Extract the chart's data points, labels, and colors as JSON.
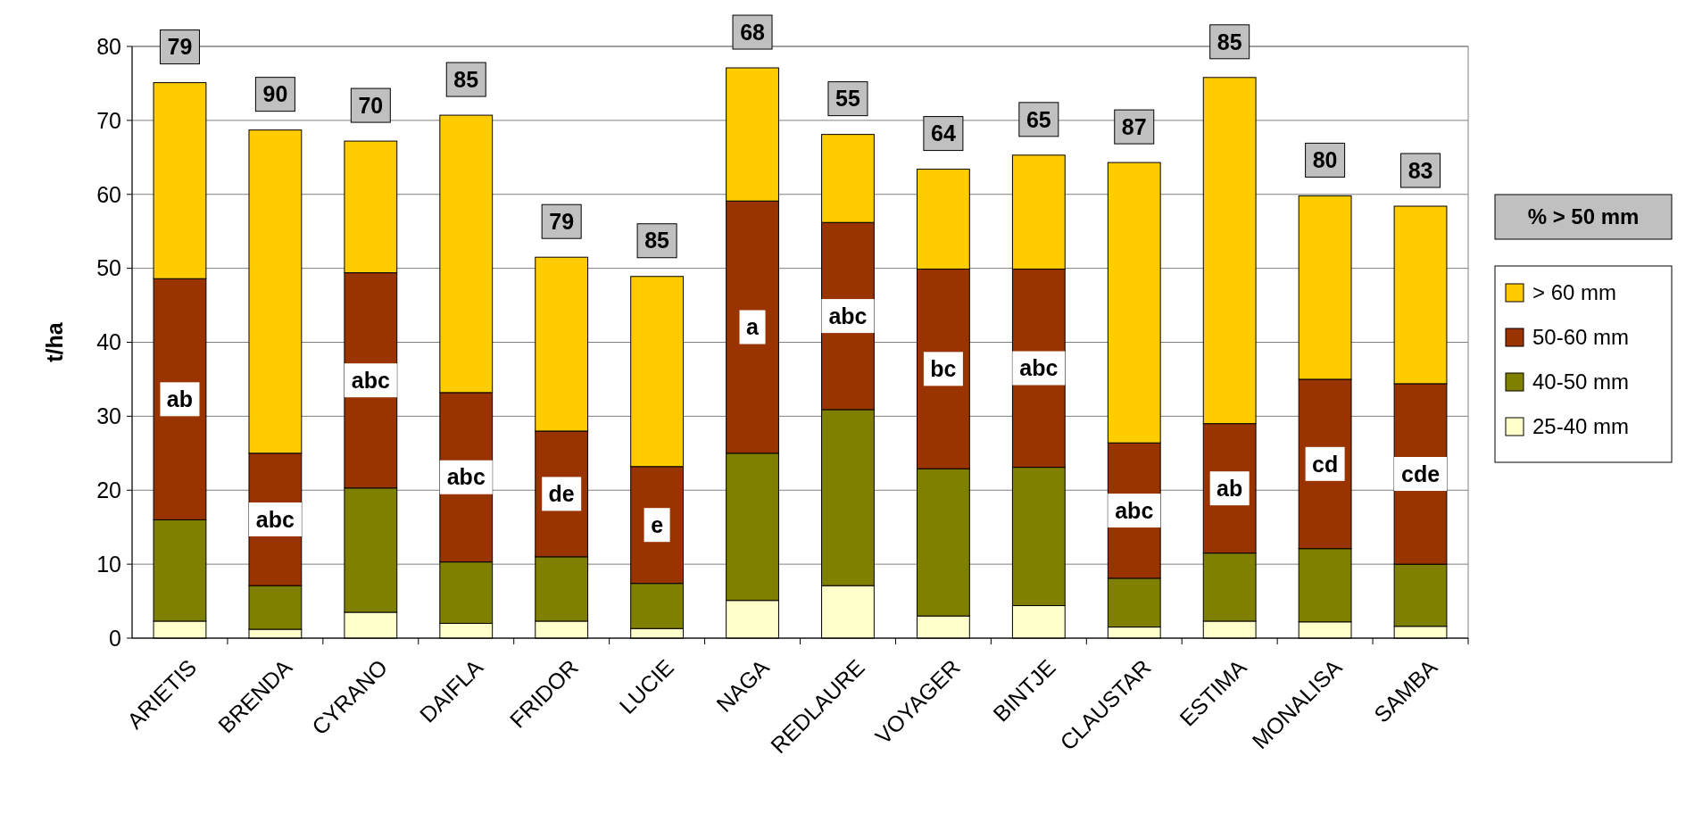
{
  "chart_data": {
    "type": "bar",
    "stacked": true,
    "ylabel": "t/ha",
    "legend_title": "% > 50 mm",
    "legend": "right",
    "grid": "y",
    "categories": [
      "ARIETIS",
      "BRENDA",
      "CYRANO",
      "DAIFLA",
      "FRIDOR",
      "LUCIE",
      "NAGA",
      "REDLAURE",
      "VOYAGER",
      "BINTJE",
      "CLAUSTAR",
      "ESTIMA",
      "MONALISA",
      "SAMBA"
    ],
    "ylim": [
      0,
      80
    ],
    "yticks": [
      0,
      10,
      20,
      30,
      40,
      50,
      60,
      70,
      80
    ],
    "series": [
      {
        "name": "25-40 mm",
        "color": "#ffffcc",
        "values": [
          2.3,
          1.2,
          3.5,
          2.0,
          2.3,
          1.3,
          5.1,
          7.1,
          3.0,
          4.4,
          1.5,
          2.3,
          2.2,
          1.6
        ]
      },
      {
        "name": "40-50 mm",
        "color": "#808000",
        "values": [
          13.7,
          5.9,
          16.8,
          8.3,
          8.7,
          6.1,
          19.9,
          23.8,
          19.9,
          18.7,
          6.6,
          9.2,
          9.9,
          8.4
        ]
      },
      {
        "name": "50-60 mm",
        "color": "#993300",
        "values": [
          32.6,
          17.9,
          29.1,
          22.9,
          17.0,
          15.8,
          34.1,
          25.3,
          27.0,
          26.8,
          18.3,
          17.5,
          22.9,
          24.4
        ]
      },
      {
        "name": "> 60 mm",
        "color": "#ffcc00",
        "values": [
          26.5,
          43.7,
          17.8,
          37.5,
          23.5,
          25.7,
          18.0,
          11.9,
          13.5,
          15.4,
          37.9,
          46.8,
          24.8,
          24.0
        ]
      }
    ],
    "annotations": [
      {
        "text": "79",
        "x": "ARIETIS",
        "y": 75.1
      },
      {
        "text": "90",
        "x": "BRENDA",
        "y": 68.7
      },
      {
        "text": "70",
        "x": "CYRANO",
        "y": 67.2
      },
      {
        "text": "85",
        "x": "DAIFLA",
        "y": 70.7
      },
      {
        "text": "79",
        "x": "FRIDOR",
        "y": 51.5
      },
      {
        "text": "85",
        "x": "LUCIE",
        "y": 48.9
      },
      {
        "text": "68",
        "x": "NAGA",
        "y": 77.1
      },
      {
        "text": "55",
        "x": "REDLAURE",
        "y": 68.1
      },
      {
        "text": "64",
        "x": "VOYAGER",
        "y": 63.4
      },
      {
        "text": "65",
        "x": "BINTJE",
        "y": 65.3
      },
      {
        "text": "87",
        "x": "CLAUSTAR",
        "y": 64.3
      },
      {
        "text": "85",
        "x": "ESTIMA",
        "y": 75.8
      },
      {
        "text": "80",
        "x": "MONALISA",
        "y": 59.8
      },
      {
        "text": "83",
        "x": "SAMBA",
        "y": 58.4
      },
      "ab",
      "abc",
      "abc",
      "abc",
      "de",
      "e",
      "a",
      "abc",
      "bc",
      "abc",
      "abc",
      "ab",
      "cd",
      "cde"
    ]
  }
}
